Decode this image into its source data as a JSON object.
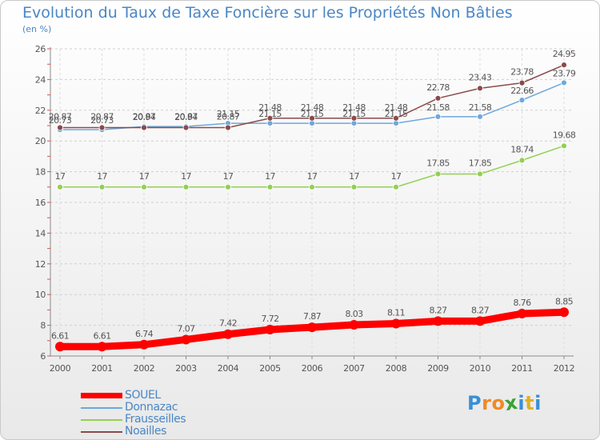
{
  "chart_data": {
    "type": "line",
    "title": "Evolution du Taux de Taxe Foncière sur les Propriétés Non Bâties",
    "ylabel": "(en %)",
    "x": [
      "2000",
      "2001",
      "2002",
      "2003",
      "2004",
      "2005",
      "2006",
      "2007",
      "2008",
      "2009",
      "2010",
      "2011",
      "2012"
    ],
    "ylim": [
      6,
      26
    ],
    "yticks": [
      6,
      8,
      10,
      12,
      14,
      16,
      18,
      20,
      22,
      24,
      26
    ],
    "grid": true,
    "legend_position": "bottom-left",
    "series": [
      {
        "name": "SOUEL",
        "color": "#ff0000",
        "values": [
          6.61,
          6.61,
          6.74,
          7.07,
          7.42,
          7.72,
          7.87,
          8.03,
          8.11,
          8.27,
          8.27,
          8.76,
          8.85
        ],
        "labels": [
          "6.61",
          "6.61",
          "6.74",
          "7.07",
          "7.42",
          "7.72",
          "7.87",
          "8.03",
          "8.11",
          "8.27",
          "8.27",
          "8.76",
          "8.85"
        ]
      },
      {
        "name": "Donnazac",
        "color": "#6fa8dc",
        "values": [
          20.73,
          20.73,
          20.94,
          20.94,
          21.15,
          21.15,
          21.15,
          21.15,
          21.15,
          21.58,
          21.58,
          22.66,
          23.79
        ],
        "labels": [
          "20.73",
          "20.73",
          "20.94",
          "20.94",
          "21.15",
          "21.15",
          "21.15",
          "21.15",
          "21.15",
          "21.58",
          "21.58",
          "22.66",
          "23.79"
        ]
      },
      {
        "name": "Frausseilles",
        "color": "#92d050",
        "values": [
          17,
          17,
          17,
          17,
          17,
          17,
          17,
          17,
          17,
          17.85,
          17.85,
          18.74,
          19.68
        ],
        "labels": [
          "17",
          "17",
          "17",
          "17",
          "17",
          "17",
          "17",
          "17",
          "17",
          "17.85",
          "17.85",
          "18.74",
          "19.68"
        ]
      },
      {
        "name": "Noailles",
        "color": "#8b4a4a",
        "values": [
          20.87,
          20.87,
          20.87,
          20.87,
          20.87,
          21.48,
          21.48,
          21.48,
          21.48,
          22.78,
          23.43,
          23.78,
          24.95
        ],
        "labels": [
          "20.87",
          "20.87",
          "20.87",
          "20.87",
          "20.87",
          "21.48",
          "21.48",
          "21.48",
          "21.48",
          "22.78",
          "23.43",
          "23.78",
          "24.95"
        ]
      }
    ]
  },
  "logo": {
    "text": "Proxiti",
    "letters": [
      "P",
      "r",
      "o",
      "x",
      "i",
      "t",
      "i"
    ],
    "colors": [
      "#3a8fd6",
      "#f08a24",
      "#f08a24",
      "#3aa335",
      "#3a8fd6",
      "#e0b020",
      "#3a8fd6"
    ]
  }
}
